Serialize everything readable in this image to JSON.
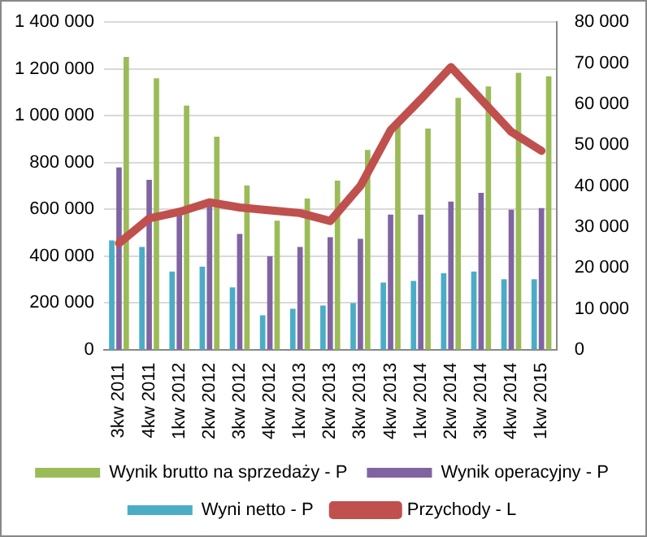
{
  "chart_data": {
    "type": "bar",
    "categories": [
      "3kw 2011",
      "4kw 2011",
      "1kw 2012",
      "2kw 2012",
      "3kw 2012",
      "4kw 2012",
      "1kw 2013",
      "2kw 2013",
      "3kw 2013",
      "4kw 2013",
      "1kw 2014",
      "2kw 2014",
      "3kw 2014",
      "4kw 2014",
      "1kw 2015"
    ],
    "series": [
      {
        "name": "Wyni netto - P",
        "color": "#4bacc6",
        "axis": "y2",
        "values": [
          26700,
          25100,
          19100,
          20300,
          15200,
          8400,
          10000,
          10800,
          11400,
          16400,
          16800,
          18700,
          19100,
          17200,
          17200
        ]
      },
      {
        "name": "Wynik operacyjny - P",
        "color": "#8064a2",
        "axis": "y2",
        "values": [
          44500,
          41500,
          34600,
          35000,
          28300,
          22800,
          25100,
          27500,
          27100,
          33000,
          33000,
          36200,
          38300,
          34200,
          34600
        ]
      },
      {
        "name": "Wynik brutto na sprzedaży - P",
        "color": "#9bbb59",
        "axis": "y2",
        "values": [
          71500,
          66300,
          59600,
          52000,
          40100,
          31500,
          36900,
          41300,
          48800,
          55200,
          54000,
          61500,
          64300,
          67600,
          66800
        ]
      },
      {
        "name": "Przychody - L",
        "type": "line",
        "color": "#c0504d",
        "values": [
          455000,
          561000,
          589000,
          630000,
          608000,
          596000,
          584000,
          550000,
          700000,
          938000,
          1070000,
          1208000,
          1070000,
          931000,
          850000
        ]
      }
    ],
    "ylim": [
      0,
      1400000
    ],
    "yticks": [
      0,
      {
        "value": 200000,
        "label": "200 000"
      },
      {
        "value": 400000,
        "label": "400 000"
      },
      {
        "value": 600000,
        "label": "600 000"
      },
      {
        "value": 800000,
        "label": "800 000"
      },
      {
        "value": 1000000,
        "label": "1 000 000"
      },
      {
        "value": 1200000,
        "label": "1 200 000"
      },
      {
        "value": 1400000,
        "label": "1 400 000"
      }
    ],
    "y2lim": [
      0,
      80000
    ],
    "y2ticks": [
      0,
      {
        "value": 10000,
        "label": "10 000"
      },
      {
        "value": 20000,
        "label": "20 000"
      },
      {
        "value": 30000,
        "label": "30 000"
      },
      {
        "value": 40000,
        "label": "40 000"
      },
      {
        "value": 50000,
        "label": "50 000"
      },
      {
        "value": 60000,
        "label": "60 000"
      },
      {
        "value": 70000,
        "label": "70 000"
      },
      {
        "value": 80000,
        "label": "80 000"
      }
    ],
    "grid": "y",
    "legend": "bottom",
    "marker": "none"
  }
}
